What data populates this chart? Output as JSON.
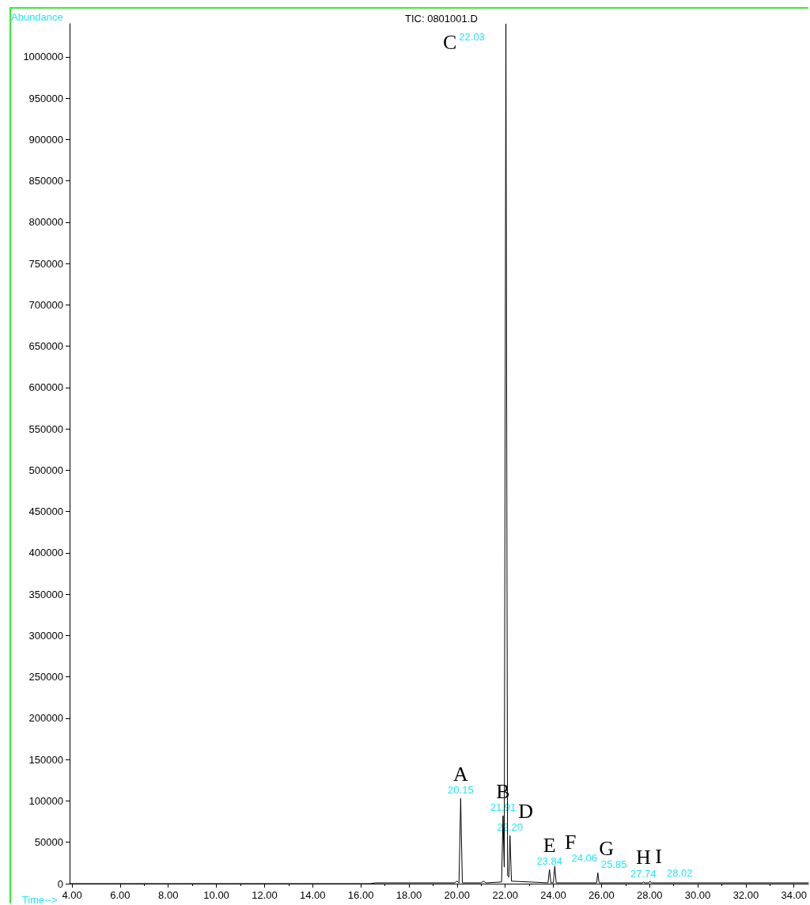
{
  "chart_data": {
    "type": "line",
    "title": "TIC: 0801001.D",
    "xlabel": "Time-->",
    "ylabel": "Abundance",
    "xlim": [
      3.9,
      34.6
    ],
    "ylim": [
      0,
      1040000
    ],
    "xticks": [
      {
        "value": 4,
        "label": "4.00"
      },
      {
        "value": 6,
        "label": "6.00"
      },
      {
        "value": 8,
        "label": "8.00"
      },
      {
        "value": 10,
        "label": "10.00"
      },
      {
        "value": 12,
        "label": "12.00"
      },
      {
        "value": 14,
        "label": "14.00"
      },
      {
        "value": 16,
        "label": "16.00"
      },
      {
        "value": 18,
        "label": "18.00"
      },
      {
        "value": 20,
        "label": "20.00"
      },
      {
        "value": 22,
        "label": "22.00"
      },
      {
        "value": 24,
        "label": "24.00"
      },
      {
        "value": 26,
        "label": "26.00"
      },
      {
        "value": 28,
        "label": "28.00"
      },
      {
        "value": 30,
        "label": "30.00"
      },
      {
        "value": 32,
        "label": "32.00"
      },
      {
        "value": 34,
        "label": "34.00"
      }
    ],
    "yticks": [
      0,
      50000,
      100000,
      150000,
      200000,
      250000,
      300000,
      350000,
      400000,
      450000,
      500000,
      550000,
      600000,
      650000,
      700000,
      750000,
      800000,
      850000,
      900000,
      950000,
      1000000
    ],
    "grid": false,
    "marker": "none",
    "line_style": "solid",
    "series": [
      {
        "color": "#000000",
        "x": [
          3.9,
          16.4,
          16.6,
          19.9,
          20.0,
          20.08,
          20.15,
          20.22,
          21.0,
          21.1,
          21.2,
          21.85,
          21.91,
          21.96,
          22.03,
          22.1,
          22.15,
          22.2,
          22.26,
          23.78,
          23.84,
          23.9,
          24.0,
          24.06,
          24.12,
          25.8,
          25.85,
          25.9,
          27.7,
          27.74,
          27.8,
          27.97,
          28.02,
          28.07,
          34.6
        ],
        "values": [
          0,
          0,
          1000,
          1000,
          3000,
          1000,
          103000,
          1000,
          1000,
          3000,
          1000,
          2000,
          82000,
          20000,
          1040000,
          10000,
          8000,
          58000,
          3000,
          1000,
          17000,
          1000,
          1000,
          21000,
          1000,
          1000,
          13000,
          1000,
          1000,
          2000,
          1000,
          1000,
          3000,
          1000,
          1000
        ]
      }
    ],
    "annotations": [
      {
        "text": "A",
        "x": 20.15,
        "y": 103000
      },
      {
        "text": "20.15",
        "x": 20.15,
        "y": 103000
      },
      {
        "text": "B",
        "x": 21.91,
        "y": 82000
      },
      {
        "text": "21.91",
        "x": 21.91,
        "y": 82000
      },
      {
        "text": "C",
        "x": 22.03,
        "y": 1040000
      },
      {
        "text": "22.03",
        "x": 22.03,
        "y": 1040000
      },
      {
        "text": "D",
        "x": 22.2,
        "y": 58000
      },
      {
        "text": "22.20",
        "x": 22.2,
        "y": 58000
      },
      {
        "text": "E",
        "x": 23.84,
        "y": 17000
      },
      {
        "text": "23.84",
        "x": 23.84,
        "y": 17000
      },
      {
        "text": "F",
        "x": 24.06,
        "y": 21000
      },
      {
        "text": "24.06",
        "x": 24.06,
        "y": 21000
      },
      {
        "text": "G",
        "x": 25.85,
        "y": 13000
      },
      {
        "text": "25.85",
        "x": 25.85,
        "y": 13000
      },
      {
        "text": "H",
        "x": 27.74,
        "y": 2000
      },
      {
        "text": "27.74",
        "x": 27.74,
        "y": 2000
      },
      {
        "text": "I",
        "x": 28.02,
        "y": 3000
      },
      {
        "text": "28.02",
        "x": 28.02,
        "y": 3000
      }
    ]
  }
}
